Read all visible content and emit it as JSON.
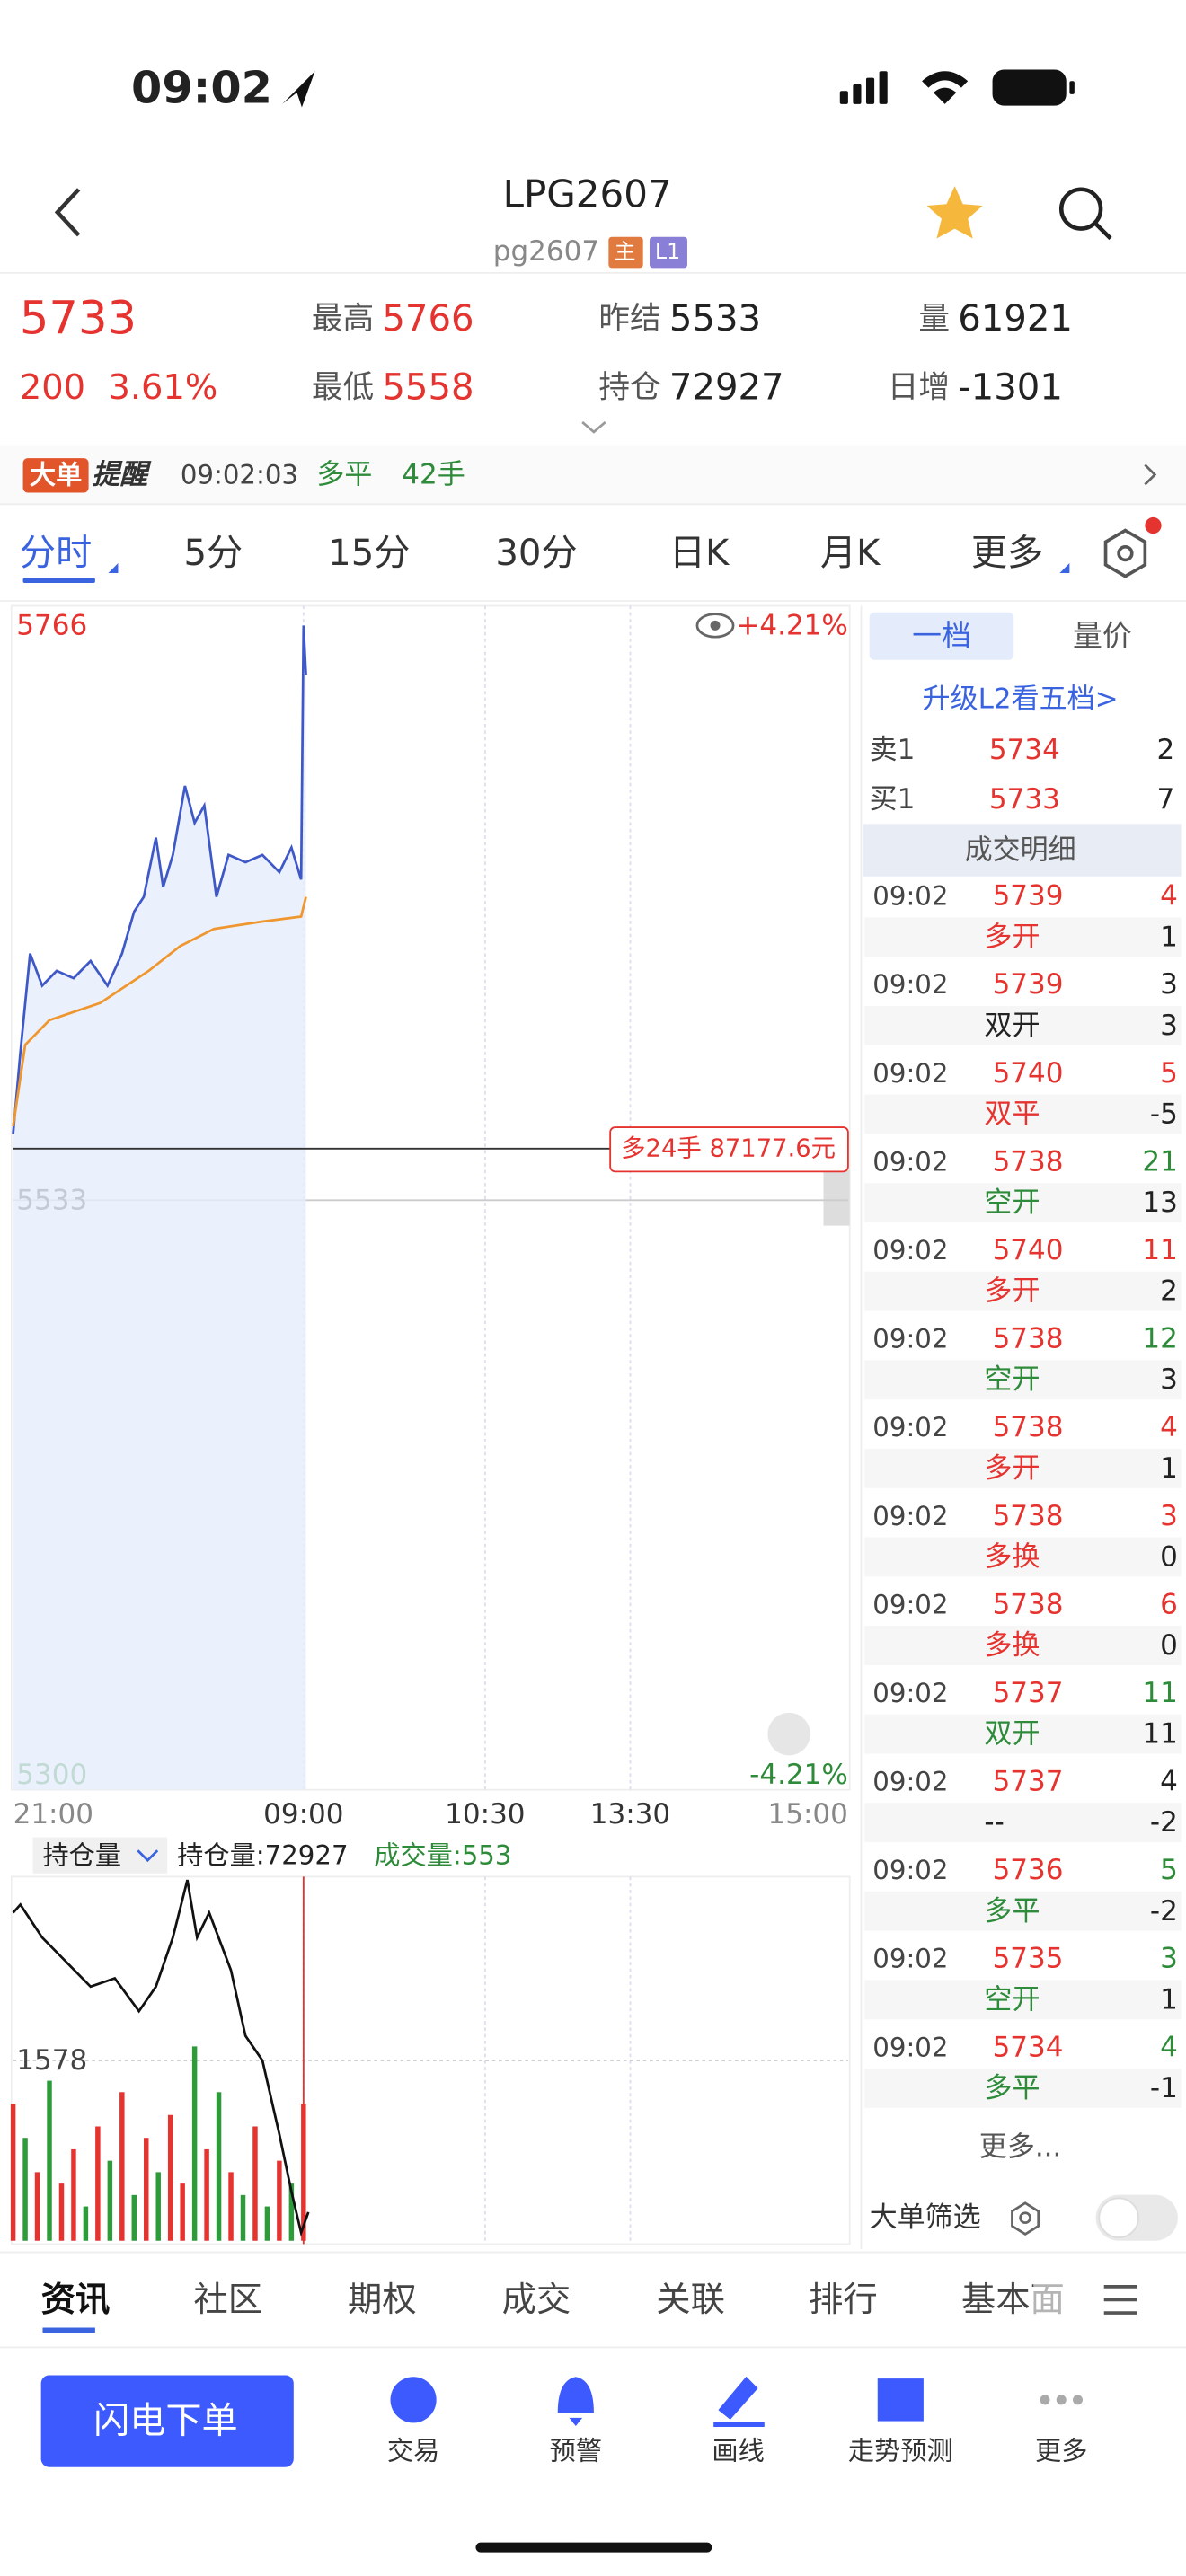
{
  "status": {
    "time": "09:02"
  },
  "header": {
    "title": "LPG2607",
    "code": "pg2607",
    "badges": [
      "主",
      "L1"
    ]
  },
  "quote": {
    "last": 5733,
    "change": 200,
    "pct": "3.61%",
    "fields": [
      {
        "label": "最高",
        "value": 5766
      },
      {
        "label": "最低",
        "value": 5558
      },
      {
        "label": "昨结",
        "value": 5533
      },
      {
        "label": "持仓",
        "value": 72927
      },
      {
        "label": "量",
        "value": 61921
      },
      {
        "label": "日增",
        "value": -1301
      }
    ]
  },
  "alert": {
    "tag": "大单",
    "tag2": "提醒",
    "time": "09:02:03",
    "action": "多平",
    "qty": "42手"
  },
  "tabs": [
    "分时",
    "5分",
    "15分",
    "30分",
    "日K",
    "月K",
    "更多"
  ],
  "chart": {
    "ylim": [
      5300,
      5766
    ],
    "yticks": [
      5300,
      5533,
      5766
    ],
    "top_pct": "+4.21%",
    "bottom_pct": "-4.21%",
    "xlim": [
      0,
      345
    ],
    "xticks": [
      {
        "value": 0,
        "label": "21:00"
      },
      {
        "value": 120,
        "label": "09:00"
      },
      {
        "value": 195,
        "label": "10:30"
      },
      {
        "value": 255,
        "label": "13:30"
      },
      {
        "value": 345,
        "label": "15:00"
      }
    ],
    "minutes": [
      0,
      3,
      7,
      12,
      18,
      25,
      32,
      39,
      45,
      50,
      54,
      59,
      62,
      66,
      71,
      75,
      79,
      84,
      89,
      96,
      103,
      110,
      115,
      119,
      120,
      121
    ],
    "price": [
      5560,
      5593,
      5633,
      5620,
      5626,
      5623,
      5630,
      5620,
      5633,
      5650,
      5656,
      5680,
      5660,
      5673,
      5701,
      5686,
      5693,
      5656,
      5673,
      5670,
      5673,
      5666,
      5676,
      5663,
      5766,
      5746
    ],
    "avg_minutes": [
      0,
      5,
      15,
      36,
      56,
      69,
      83,
      103,
      119,
      121
    ],
    "avg": [
      5563,
      5596,
      5606,
      5613,
      5626,
      5636,
      5643,
      5646,
      5648,
      5656
    ],
    "price_color": "#3f58c8",
    "avg_color": "#f0962e",
    "marker": "多24手 87177.6元"
  },
  "sub": {
    "selector": "持仓量",
    "oi_label": "持仓量:72927",
    "vol_label": "成交量:553",
    "oi_ylim": [
      72800,
      74400
    ],
    "oi_minutes": [
      0,
      3,
      12,
      22,
      32,
      42,
      52,
      59,
      66,
      72,
      76,
      81,
      90,
      96,
      103,
      110,
      115,
      119,
      122
    ],
    "oi": [
      74255,
      74291,
      74145,
      74036,
      73927,
      73964,
      73818,
      73927,
      74145,
      74400,
      74145,
      74255,
      74000,
      73709,
      73600,
      73273,
      73018,
      72836,
      72927
    ],
    "vol_ylim": [
      0,
      3156
    ],
    "vol_ticks": [
      1578
    ],
    "vol_minutes": [
      0,
      5,
      10,
      15,
      20,
      25,
      30,
      35,
      40,
      45,
      50,
      55,
      60,
      65,
      70,
      75,
      80,
      85,
      90,
      95,
      100,
      105,
      110,
      115,
      120
    ],
    "vol": [
      1200,
      900,
      600,
      1400,
      500,
      800,
      300,
      1000,
      700,
      1300,
      400,
      900,
      600,
      1100,
      500,
      1700,
      800,
      1300,
      600,
      400,
      1000,
      300,
      700,
      500,
      1200
    ],
    "vol_colors": [
      "#e5332f",
      "#2e9b3a",
      "#e5332f",
      "#2e9b3a",
      "#e5332f",
      "#e5332f",
      "#2e9b3a",
      "#e5332f",
      "#2e9b3a",
      "#e5332f",
      "#2e9b3a",
      "#e5332f",
      "#2e9b3a",
      "#e5332f",
      "#e5332f",
      "#2e9b3a",
      "#e5332f",
      "#2e9b3a",
      "#e5332f",
      "#2e9b3a",
      "#e5332f",
      "#2e9b3a",
      "#e5332f",
      "#2e9b3a",
      "#e5332f"
    ]
  },
  "side": {
    "tabs": [
      "一档",
      "量价"
    ],
    "upgrade": "升级L2看五档>",
    "book": [
      {
        "label": "卖1",
        "price": 5734,
        "qty": 2
      },
      {
        "label": "买1",
        "price": 5733,
        "qty": 7
      }
    ],
    "detail_title": "成交明细",
    "trades": [
      {
        "time": "09:02",
        "price": 5739,
        "qty": 4,
        "qty_color": "#e5332f",
        "type": "多开",
        "type_color": "#e5332f",
        "change": 1
      },
      {
        "time": "09:02",
        "price": 5739,
        "qty": 3,
        "qty_color": "#222",
        "type": "双开",
        "type_color": "#222",
        "change": 3
      },
      {
        "time": "09:02",
        "price": 5740,
        "qty": 5,
        "qty_color": "#e5332f",
        "type": "双平",
        "type_color": "#e5332f",
        "change": -5
      },
      {
        "time": "09:02",
        "price": 5738,
        "qty": 21,
        "qty_color": "#2e8b3a",
        "type": "空开",
        "type_color": "#2e8b3a",
        "change": 13
      },
      {
        "time": "09:02",
        "price": 5740,
        "qty": 11,
        "qty_color": "#e5332f",
        "type": "多开",
        "type_color": "#e5332f",
        "change": 2
      },
      {
        "time": "09:02",
        "price": 5738,
        "qty": 12,
        "qty_color": "#2e8b3a",
        "type": "空开",
        "type_color": "#2e8b3a",
        "change": 3
      },
      {
        "time": "09:02",
        "price": 5738,
        "qty": 4,
        "qty_color": "#e5332f",
        "type": "多开",
        "type_color": "#e5332f",
        "change": 1
      },
      {
        "time": "09:02",
        "price": 5738,
        "qty": 3,
        "qty_color": "#e5332f",
        "type": "多换",
        "type_color": "#e5332f",
        "change": 0
      },
      {
        "time": "09:02",
        "price": 5738,
        "qty": 6,
        "qty_color": "#e5332f",
        "type": "多换",
        "type_color": "#e5332f",
        "change": 0
      },
      {
        "time": "09:02",
        "price": 5737,
        "qty": 11,
        "qty_color": "#2e8b3a",
        "type": "双开",
        "type_color": "#2e8b3a",
        "change": 11
      },
      {
        "time": "09:02",
        "price": 5737,
        "qty": 4,
        "qty_color": "#222",
        "type": "--",
        "type_color": "#222",
        "change": -2
      },
      {
        "time": "09:02",
        "price": 5736,
        "qty": 5,
        "qty_color": "#2e8b3a",
        "type": "多平",
        "type_color": "#2e8b3a",
        "change": -2
      },
      {
        "time": "09:02",
        "price": 5735,
        "qty": 3,
        "qty_color": "#2e8b3a",
        "type": "空开",
        "type_color": "#2e8b3a",
        "change": 1
      },
      {
        "time": "09:02",
        "price": 5734,
        "qty": 4,
        "qty_color": "#2e8b3a",
        "type": "多平",
        "type_color": "#2e8b3a",
        "change": -1
      }
    ],
    "more": "更多...",
    "filter": "大单筛选"
  },
  "bottom_tabs": [
    "资讯",
    "社区",
    "期权",
    "成交",
    "关联",
    "排行",
    "基本面"
  ],
  "action": "闪电下单",
  "nav": [
    "交易",
    "预警",
    "画线",
    "走势预测",
    "更多"
  ]
}
